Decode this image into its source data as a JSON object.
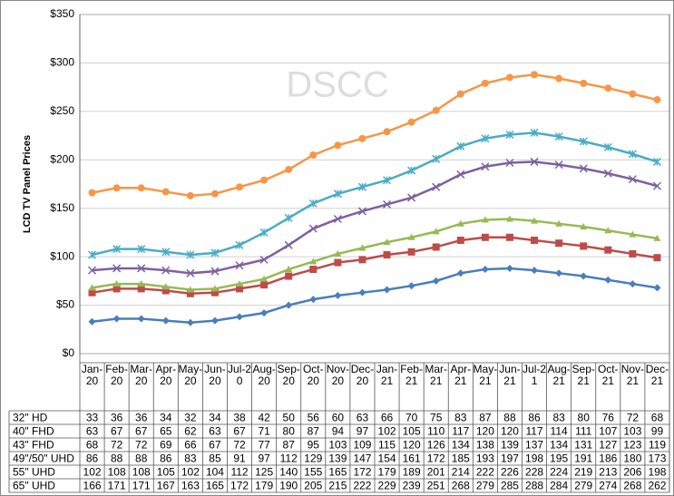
{
  "chart_data": {
    "type": "line",
    "y_label": "LCD TV Panel Prices",
    "watermark": "DSCC",
    "categories": [
      "Jan-20",
      "Feb-20",
      "Mar-20",
      "Apr-20",
      "May-20",
      "Jun-20",
      "Jul-20",
      "Aug-20",
      "Sep-20",
      "Oct-20",
      "Nov-20",
      "Dec-20",
      "Jan-21",
      "Feb-21",
      "Mar-21",
      "Apr-21",
      "May-21",
      "Jun-21",
      "Jul-21",
      "Aug-21",
      "Sep-21",
      "Oct-21",
      "Nov-21",
      "Dec-21"
    ],
    "series": [
      {
        "name": "32\" HD",
        "color": "#4a7ebb",
        "marker": "diamond",
        "values": [
          33,
          36,
          36,
          34,
          32,
          34,
          38,
          42,
          50,
          56,
          60,
          63,
          66,
          70,
          75,
          83,
          87,
          88,
          86,
          83,
          80,
          76,
          72,
          68
        ]
      },
      {
        "name": "40\" FHD",
        "color": "#be4b48",
        "marker": "square",
        "values": [
          63,
          67,
          67,
          65,
          62,
          63,
          67,
          71,
          80,
          87,
          94,
          97,
          102,
          105,
          110,
          117,
          120,
          120,
          117,
          114,
          111,
          107,
          103,
          99
        ]
      },
      {
        "name": "43\" FHD",
        "color": "#98b954",
        "marker": "triangle",
        "values": [
          68,
          72,
          72,
          69,
          66,
          67,
          72,
          77,
          87,
          95,
          103,
          109,
          115,
          120,
          126,
          134,
          138,
          139,
          137,
          134,
          131,
          127,
          123,
          119
        ]
      },
      {
        "name": "49\"/50\" UHD",
        "color": "#7d60a0",
        "marker": "x",
        "values": [
          86,
          88,
          88,
          86,
          83,
          85,
          91,
          97,
          112,
          129,
          139,
          147,
          154,
          161,
          172,
          185,
          193,
          197,
          198,
          195,
          191,
          186,
          180,
          173
        ]
      },
      {
        "name": "55\" UHD",
        "color": "#4bacc6",
        "marker": "star",
        "values": [
          102,
          108,
          108,
          105,
          102,
          104,
          112,
          125,
          140,
          155,
          165,
          172,
          179,
          189,
          201,
          214,
          222,
          226,
          228,
          224,
          219,
          213,
          206,
          198
        ]
      },
      {
        "name": "65\" UHD",
        "color": "#f79646",
        "marker": "circle",
        "values": [
          166,
          171,
          171,
          167,
          163,
          165,
          172,
          179,
          190,
          205,
          215,
          222,
          229,
          239,
          251,
          268,
          279,
          285,
          288,
          284,
          279,
          274,
          268,
          262
        ]
      }
    ],
    "ylim": [
      0,
      350
    ],
    "yticks": [
      {
        "value": 0,
        "label": "$0"
      },
      {
        "value": 50,
        "label": "$50"
      },
      {
        "value": 100,
        "label": "$100"
      },
      {
        "value": 150,
        "label": "$150"
      },
      {
        "value": 200,
        "label": "$200"
      },
      {
        "value": 250,
        "label": "$250"
      },
      {
        "value": 300,
        "label": "$300"
      },
      {
        "value": 350,
        "label": "$350"
      }
    ],
    "grid": true
  }
}
